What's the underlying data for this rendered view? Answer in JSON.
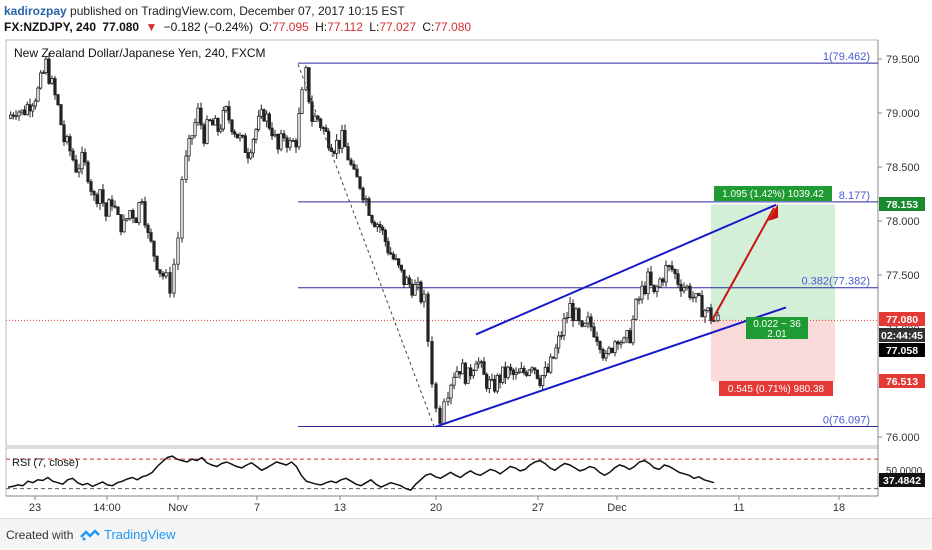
{
  "header": {
    "author": "kadirozpay",
    "published_text": "published on TradingView.com, December 07, 2017 10:15 EST",
    "symbol": "FX:NZDJPY, 240",
    "last": "77.080",
    "change": "−0.182 (−0.24%)",
    "o_label": "O:",
    "o_value": "77.095",
    "h_label": "H:",
    "h_value": "77.112",
    "l_label": "L:",
    "l_value": "77.027",
    "c_label": "C:",
    "c_value": "77.080"
  },
  "footer": {
    "created_with": "Created with",
    "brand": "TradingView"
  },
  "chart_data": {
    "type": "candlestick",
    "title": "New Zealand Dollar/Japanese Yen, 240, FXCM",
    "ylim": [
      76.0,
      79.6
    ],
    "price_ticks": [
      79.5,
      79.0,
      78.5,
      78.0,
      77.5,
      77.0,
      76.0
    ],
    "price_tick_labels": [
      "79.500",
      "79.000",
      "78.500",
      "78.000",
      "77.500",
      "77.000",
      "76.000"
    ],
    "time_labels": [
      "23",
      "14:00",
      "Nov",
      "7",
      "13",
      "20",
      "27",
      "Dec",
      "11",
      "18"
    ],
    "path": [
      [
        0,
        78.95
      ],
      [
        8,
        79.05
      ],
      [
        14,
        79.0
      ],
      [
        22,
        79.1
      ],
      [
        30,
        79.2
      ],
      [
        38,
        79.45
      ],
      [
        44,
        79.25
      ],
      [
        50,
        79.05
      ],
      [
        56,
        78.75
      ],
      [
        62,
        78.65
      ],
      [
        68,
        78.5
      ],
      [
        74,
        78.55
      ],
      [
        80,
        78.45
      ],
      [
        86,
        78.2
      ],
      [
        92,
        78.3
      ],
      [
        98,
        78.05
      ],
      [
        104,
        78.2
      ],
      [
        110,
        78.0
      ],
      [
        116,
        77.95
      ],
      [
        122,
        78.1
      ],
      [
        128,
        78.05
      ],
      [
        134,
        78.25
      ],
      [
        140,
        77.85
      ],
      [
        146,
        77.7
      ],
      [
        152,
        77.55
      ],
      [
        158,
        77.45
      ],
      [
        162,
        77.4
      ],
      [
        166,
        77.6
      ],
      [
        170,
        77.85
      ],
      [
        174,
        78.4
      ],
      [
        178,
        78.55
      ],
      [
        184,
        78.8
      ],
      [
        190,
        79.0
      ],
      [
        196,
        78.8
      ],
      [
        202,
        78.9
      ],
      [
        210,
        78.85
      ],
      [
        218,
        79.0
      ],
      [
        224,
        78.9
      ],
      [
        232,
        78.75
      ],
      [
        240,
        78.65
      ],
      [
        248,
        78.85
      ],
      [
        256,
        79.0
      ],
      [
        264,
        78.85
      ],
      [
        270,
        78.65
      ],
      [
        276,
        78.8
      ],
      [
        282,
        78.7
      ],
      [
        288,
        78.75
      ],
      [
        294,
        79.15
      ],
      [
        298,
        79.35
      ],
      [
        304,
        78.95
      ],
      [
        310,
        78.95
      ],
      [
        318,
        78.8
      ],
      [
        326,
        78.7
      ],
      [
        334,
        78.75
      ],
      [
        340,
        78.6
      ],
      [
        346,
        78.4
      ],
      [
        352,
        78.35
      ],
      [
        358,
        78.2
      ],
      [
        364,
        78.05
      ],
      [
        372,
        77.95
      ],
      [
        380,
        77.75
      ],
      [
        388,
        77.6
      ],
      [
        396,
        77.45
      ],
      [
        404,
        77.4
      ],
      [
        410,
        77.35
      ],
      [
        416,
        77.25
      ],
      [
        420,
        76.9
      ],
      [
        424,
        76.55
      ],
      [
        428,
        76.25
      ],
      [
        432,
        76.2
      ],
      [
        436,
        76.4
      ],
      [
        440,
        76.45
      ],
      [
        446,
        76.6
      ],
      [
        452,
        76.65
      ],
      [
        460,
        76.55
      ],
      [
        468,
        76.75
      ],
      [
        476,
        76.55
      ],
      [
        484,
        76.45
      ],
      [
        492,
        76.55
      ],
      [
        500,
        76.6
      ],
      [
        508,
        76.55
      ],
      [
        516,
        76.6
      ],
      [
        524,
        76.7
      ],
      [
        532,
        76.55
      ],
      [
        540,
        76.6
      ],
      [
        548,
        76.8
      ],
      [
        556,
        77.05
      ],
      [
        562,
        77.2
      ],
      [
        568,
        77.1
      ],
      [
        574,
        76.95
      ],
      [
        580,
        77.05
      ],
      [
        586,
        77.0
      ],
      [
        592,
        76.9
      ],
      [
        598,
        76.7
      ],
      [
        604,
        76.85
      ],
      [
        610,
        76.95
      ],
      [
        616,
        76.85
      ],
      [
        622,
        76.95
      ],
      [
        628,
        77.2
      ],
      [
        634,
        77.35
      ],
      [
        640,
        77.45
      ],
      [
        646,
        77.3
      ],
      [
        652,
        77.45
      ],
      [
        658,
        77.55
      ],
      [
        664,
        77.55
      ],
      [
        670,
        77.45
      ],
      [
        676,
        77.4
      ],
      [
        682,
        77.35
      ],
      [
        688,
        77.25
      ],
      [
        694,
        77.2
      ],
      [
        700,
        77.15
      ],
      [
        706,
        77.08
      ],
      [
        710,
        77.08
      ]
    ],
    "annotations": {
      "fib_levels": [
        {
          "label": "1(79.462)",
          "value": 79.462
        },
        {
          "label": "8.177)",
          "value": 78.177
        },
        {
          "label": "0.382(77.382)",
          "value": 77.382
        },
        {
          "label": "0(76.097)",
          "value": 76.097
        }
      ],
      "target_box_label": "1.095 (1.42%) 1039.42",
      "stop_box_label": "0.545 (0.71%) 980.38",
      "ratio_box_label1": "0.022 ~ 36",
      "ratio_box_label2": "2.01",
      "price_tags": [
        {
          "label": "78.153",
          "value": 78.153,
          "color": "#1b8a2e"
        },
        {
          "label": "77.080",
          "value": 77.08,
          "color": "#e53935"
        },
        {
          "label": "02:44:45",
          "value": 76.95,
          "color": "#333333"
        },
        {
          "label": "77.058",
          "value": 76.87,
          "color": "#000000"
        },
        {
          "label": "76.513",
          "value": 76.513,
          "color": "#e53935"
        }
      ]
    },
    "rsi": {
      "label": "RSI (7, close)",
      "value_label": "37.4842",
      "tick_label": "50.0000",
      "overbought": 70,
      "oversold": 30,
      "values": [
        32,
        33,
        35,
        34,
        40,
        38,
        42,
        41,
        45,
        40,
        38,
        36,
        42,
        44,
        38,
        35,
        37,
        33,
        36,
        39,
        35,
        34,
        38,
        40,
        43,
        45,
        42,
        46,
        48,
        52,
        60,
        66,
        72,
        74,
        70,
        68,
        66,
        70,
        68,
        72,
        65,
        62,
        60,
        64,
        66,
        63,
        60,
        58,
        62,
        65,
        60,
        55,
        58,
        62,
        66,
        64,
        62,
        66,
        60,
        48,
        40,
        38,
        36,
        35,
        38,
        40,
        38,
        42,
        44,
        40,
        36,
        34,
        38,
        42,
        36,
        32,
        35,
        38,
        36,
        34,
        30,
        28,
        36,
        42,
        48,
        50,
        46,
        44,
        48,
        52,
        48,
        45,
        50,
        54,
        50,
        48,
        52,
        56,
        54,
        50,
        55,
        60,
        58,
        54,
        56,
        62,
        66,
        68,
        64,
        58,
        55,
        60,
        64,
        62,
        58,
        54,
        56,
        60,
        58,
        52,
        48,
        52,
        58,
        62,
        60,
        56,
        60,
        66,
        68,
        64,
        58,
        56,
        62,
        60,
        56,
        52,
        50,
        48,
        44,
        46,
        42,
        40,
        38
      ]
    },
    "colors": {
      "up": "#1b1b1b",
      "down": "#1b1b1b",
      "channel": "#1919cc",
      "fib": "#2a2a9e",
      "arrow": "#cc1111"
    }
  }
}
